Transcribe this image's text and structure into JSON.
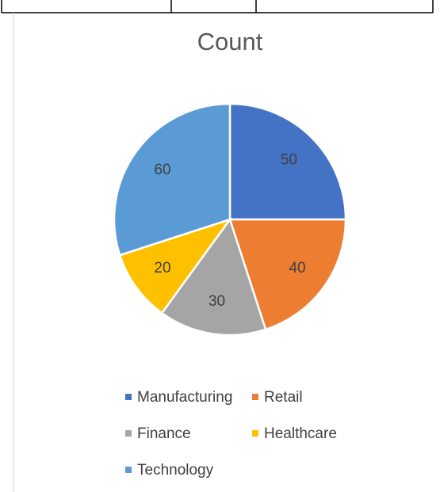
{
  "chart_data": {
    "type": "pie",
    "title": "Count",
    "categories": [
      "Manufacturing",
      "Retail",
      "Finance",
      "Healthcare",
      "Technology"
    ],
    "values": [
      50,
      40,
      30,
      20,
      60
    ],
    "colors": [
      "#4472c4",
      "#ed7d31",
      "#a5a5a5",
      "#ffc000",
      "#5b9bd5"
    ],
    "legend": "bottom"
  }
}
